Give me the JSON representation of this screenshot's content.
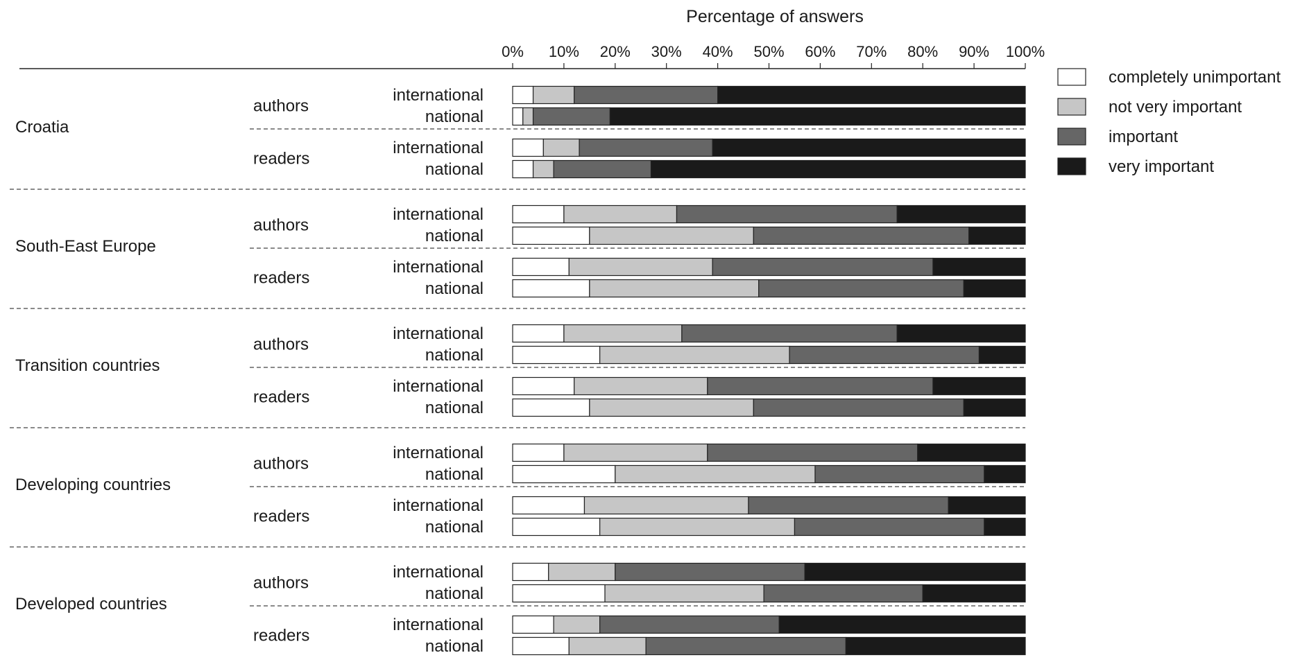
{
  "chart_data": {
    "type": "bar",
    "stacked": true,
    "orientation": "horizontal",
    "title": "Percentage of answers",
    "x_ticks": [
      "0%",
      "10%",
      "20%",
      "30%",
      "40%",
      "50%",
      "60%",
      "70%",
      "80%",
      "90%",
      "100%"
    ],
    "xlim": [
      0,
      100
    ],
    "legend_position": "top-right",
    "series": [
      {
        "name": "completely unimportant",
        "color": "#ffffff"
      },
      {
        "name": "not very important",
        "color": "#c6c6c6"
      },
      {
        "name": "important",
        "color": "#666666"
      },
      {
        "name": "very important",
        "color": "#1a1a1a"
      }
    ],
    "groups": [
      {
        "name": "Croatia",
        "subgroups": [
          {
            "name": "authors",
            "rows": [
              {
                "label": "international",
                "values": [
                  4,
                  8,
                  28,
                  60
                ]
              },
              {
                "label": "national",
                "values": [
                  2,
                  2,
                  15,
                  81
                ]
              }
            ]
          },
          {
            "label_note": "",
            "name": "readers",
            "rows": [
              {
                "label": "international",
                "values": [
                  6,
                  7,
                  26,
                  61
                ]
              },
              {
                "label": "national",
                "values": [
                  4,
                  4,
                  19,
                  73
                ]
              }
            ]
          }
        ]
      },
      {
        "name": "South-East Europe",
        "subgroups": [
          {
            "name": "authors",
            "rows": [
              {
                "label": "international",
                "values": [
                  10,
                  22,
                  43,
                  25
                ]
              },
              {
                "label": "national",
                "values": [
                  15,
                  32,
                  42,
                  11
                ]
              }
            ]
          },
          {
            "name": "readers",
            "rows": [
              {
                "label": "international",
                "values": [
                  11,
                  28,
                  43,
                  18
                ]
              },
              {
                "label": "national",
                "values": [
                  15,
                  33,
                  40,
                  12
                ]
              }
            ]
          }
        ]
      },
      {
        "name": "Transition countries",
        "subgroups": [
          {
            "name": "authors",
            "rows": [
              {
                "label": "international",
                "values": [
                  10,
                  23,
                  42,
                  25
                ]
              },
              {
                "label": "national",
                "values": [
                  17,
                  37,
                  37,
                  9
                ]
              }
            ]
          },
          {
            "name": "readers",
            "rows": [
              {
                "label": "international",
                "values": [
                  12,
                  26,
                  44,
                  18
                ]
              },
              {
                "label": "national",
                "values": [
                  15,
                  32,
                  41,
                  12
                ]
              }
            ]
          }
        ]
      },
      {
        "name": "Developing countries",
        "subgroups": [
          {
            "name": "authors",
            "rows": [
              {
                "label": "international",
                "values": [
                  10,
                  28,
                  41,
                  21
                ]
              },
              {
                "label": "national",
                "values": [
                  20,
                  39,
                  33,
                  8
                ]
              }
            ]
          },
          {
            "name": "readers",
            "rows": [
              {
                "label": "international",
                "values": [
                  14,
                  32,
                  39,
                  15
                ]
              },
              {
                "label": "national",
                "values": [
                  17,
                  38,
                  37,
                  8
                ]
              }
            ]
          }
        ]
      },
      {
        "name": "Developed countries",
        "subgroups": [
          {
            "name": "authors",
            "rows": [
              {
                "label": "international",
                "values": [
                  7,
                  13,
                  37,
                  43
                ]
              },
              {
                "label": "national",
                "values": [
                  18,
                  31,
                  31,
                  20
                ]
              }
            ]
          },
          {
            "name": "readers",
            "rows": [
              {
                "label": "international",
                "values": [
                  8,
                  9,
                  35,
                  48
                ]
              },
              {
                "label": "national",
                "values": [
                  11,
                  15,
                  39,
                  35
                ]
              }
            ]
          }
        ]
      }
    ]
  }
}
